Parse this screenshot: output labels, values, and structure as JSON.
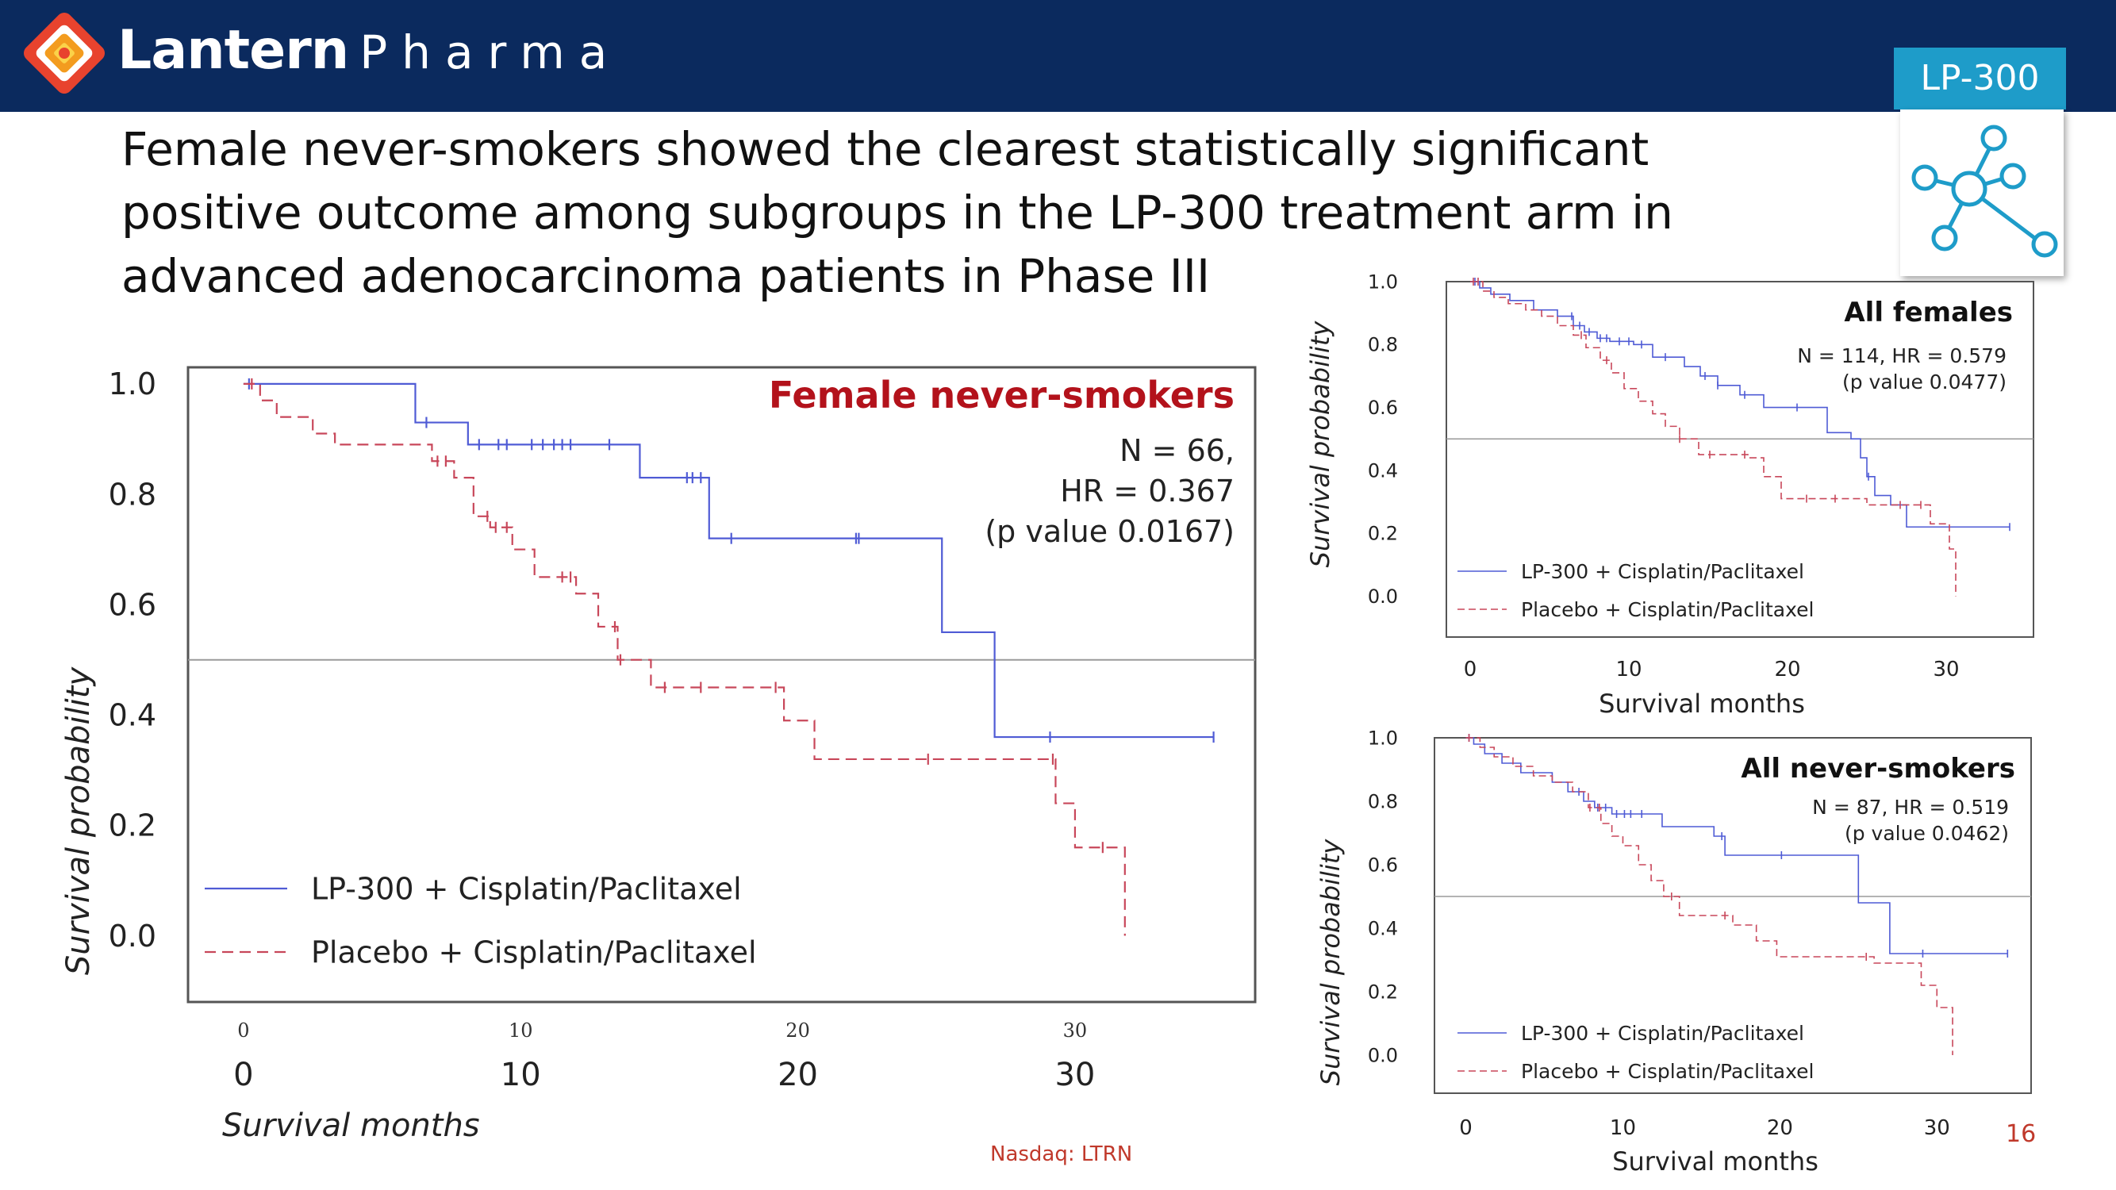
{
  "brand": {
    "name_part1": "Lantern",
    "name_part2": "Pharma"
  },
  "badge": {
    "label": "LP-300"
  },
  "headline": "Female never-smokers showed the clearest statistically significant positive outcome among subgroups in the LP-300 treatment arm in advanced adenocarcinoma patients in Phase III",
  "footer": {
    "ticker": "Nasdaq: LTRN",
    "page_number": "16"
  },
  "colors": {
    "navy": "#0b2a5e",
    "accent": "#1e9cc9",
    "lp300_line": "#4f5bd5",
    "placebo_line": "#c8475a",
    "title_red": "#b3121b"
  },
  "chart_data": [
    {
      "type": "line",
      "subtype": "kaplan-meier",
      "title": "Female never-smokers",
      "stats": [
        "N = 66,",
        "HR = 0.367",
        "(p value 0.0167)"
      ],
      "xlabel": "Survival months",
      "ylabel": "Survival probability",
      "xlim": [
        -2,
        36.5
      ],
      "ylim": [
        -0.12,
        1.03
      ],
      "x_ticks": [
        0,
        10,
        20,
        30
      ],
      "x_ticks_small": [
        0,
        10,
        20,
        30
      ],
      "y_ticks": [
        "1.0",
        "0.8",
        "0.6",
        "0.4",
        "0.2",
        "0.0"
      ],
      "reference_y": 0.5,
      "legend_position": "bottom-left",
      "series": [
        {
          "name": "LP-300 + Cisplatin/Paclitaxel",
          "style": "solid",
          "x": [
            0,
            6.2,
            8.1,
            14.3,
            16.8,
            25.2,
            27.1,
            35.0
          ],
          "y": [
            1.0,
            0.93,
            0.89,
            0.83,
            0.72,
            0.55,
            0.36,
            0.36
          ],
          "censor_x": [
            0.2,
            6.6,
            8.5,
            9.2,
            9.5,
            10.4,
            10.8,
            11.2,
            11.5,
            11.8,
            13.2,
            16.0,
            16.2,
            16.5,
            17.6,
            22.1,
            22.2,
            29.1,
            35.0
          ]
        },
        {
          "name": "Placebo + Cisplatin/Paclitaxel",
          "style": "dashed",
          "x": [
            0,
            0.6,
            1.2,
            2.5,
            3.3,
            6.8,
            7.6,
            8.3,
            8.9,
            9.7,
            10.5,
            12.0,
            12.8,
            13.5,
            14.7,
            19.5,
            20.6,
            29.3,
            30.0,
            31.8,
            31.8
          ],
          "y": [
            1.0,
            0.97,
            0.94,
            0.91,
            0.89,
            0.86,
            0.83,
            0.76,
            0.74,
            0.7,
            0.65,
            0.62,
            0.56,
            0.5,
            0.45,
            0.39,
            0.32,
            0.24,
            0.16,
            0.16,
            0.0
          ],
          "censor_x": [
            0.3,
            7.0,
            7.3,
            8.8,
            9.1,
            9.5,
            11.5,
            11.8,
            13.4,
            13.6,
            15.2,
            16.5,
            19.2,
            24.7,
            29.2,
            31.0
          ]
        }
      ]
    },
    {
      "type": "line",
      "subtype": "kaplan-meier",
      "title": "All females",
      "stats": [
        "N = 114, HR = 0.579",
        "(p value 0.0477)"
      ],
      "xlabel": "Survival months",
      "ylabel": "Survival probability",
      "xlim": [
        -1.5,
        35.5
      ],
      "ylim": [
        -0.13,
        1.0
      ],
      "x_ticks": [
        0,
        10,
        20,
        30
      ],
      "y_ticks": [
        "1.0",
        "0.8",
        "0.6",
        "0.4",
        "0.2",
        "0.0"
      ],
      "reference_y": 0.5,
      "legend_position": "bottom-left",
      "series": [
        {
          "name": "LP-300 + Cisplatin/Paclitaxel",
          "style": "solid",
          "x": [
            0,
            0.6,
            1.3,
            2.5,
            4.0,
            5.5,
            6.5,
            7.2,
            8.0,
            8.8,
            10.3,
            11.5,
            13.5,
            14.5,
            15.6,
            17.0,
            18.5,
            22.5,
            24.0,
            24.6,
            25.0,
            25.5,
            26.5,
            27.5,
            34.0
          ],
          "y": [
            1.0,
            0.98,
            0.96,
            0.94,
            0.91,
            0.89,
            0.86,
            0.84,
            0.82,
            0.81,
            0.8,
            0.76,
            0.73,
            0.7,
            0.67,
            0.64,
            0.6,
            0.52,
            0.5,
            0.44,
            0.38,
            0.32,
            0.29,
            0.22,
            0.22
          ],
          "censor_x": [
            0.3,
            6.4,
            6.9,
            7.5,
            8.2,
            8.6,
            9.4,
            10.0,
            10.8,
            12.3,
            14.8,
            15.6,
            17.3,
            20.6,
            25.1,
            34.0
          ]
        },
        {
          "name": "Placebo + Cisplatin/Paclitaxel",
          "style": "dashed",
          "x": [
            0,
            0.8,
            1.5,
            2.4,
            3.5,
            4.5,
            5.5,
            6.5,
            7.3,
            8.2,
            8.9,
            9.7,
            10.6,
            11.5,
            12.3,
            13.2,
            14.4,
            17.5,
            18.5,
            19.6,
            23.5,
            25.0,
            27.0,
            29.0,
            30.2,
            30.6,
            30.6
          ],
          "y": [
            1.0,
            0.97,
            0.95,
            0.93,
            0.91,
            0.89,
            0.86,
            0.83,
            0.79,
            0.75,
            0.71,
            0.66,
            0.62,
            0.58,
            0.54,
            0.5,
            0.45,
            0.44,
            0.38,
            0.31,
            0.31,
            0.29,
            0.29,
            0.23,
            0.15,
            0.15,
            0.0
          ],
          "censor_x": [
            0.2,
            0.5,
            7.0,
            8.6,
            13.2,
            15.1,
            17.3,
            21.2,
            23.0,
            27.1,
            28.4
          ]
        }
      ]
    },
    {
      "type": "line",
      "subtype": "kaplan-meier",
      "title": "All never-smokers",
      "stats": [
        "N = 87, HR = 0.519",
        "(p value 0.0462)"
      ],
      "xlabel": "Survival months",
      "ylabel": "Survival probability",
      "xlim": [
        -2,
        36
      ],
      "ylim": [
        -0.12,
        1.0
      ],
      "x_ticks": [
        0,
        10,
        20,
        30
      ],
      "y_ticks": [
        "1.0",
        "0.8",
        "0.6",
        "0.4",
        "0.2",
        "0.0"
      ],
      "reference_y": 0.5,
      "legend_position": "bottom-left",
      "series": [
        {
          "name": "LP-300 + Cisplatin/Paclitaxel",
          "style": "solid",
          "x": [
            0,
            0.5,
            1.2,
            2.3,
            3.5,
            5.5,
            6.5,
            7.5,
            8.2,
            9.3,
            12.5,
            15.8,
            16.5,
            25.0,
            27.0,
            34.5
          ],
          "y": [
            1.0,
            0.98,
            0.95,
            0.92,
            0.89,
            0.86,
            0.83,
            0.8,
            0.78,
            0.76,
            0.72,
            0.69,
            0.63,
            0.48,
            0.32,
            0.32
          ],
          "censor_x": [
            0.2,
            7.2,
            8.4,
            8.9,
            9.6,
            10.1,
            10.5,
            11.2,
            16.3,
            20.1,
            29.1,
            34.5
          ]
        },
        {
          "name": "Placebo + Cisplatin/Paclitaxel",
          "style": "dashed",
          "x": [
            0,
            0.9,
            1.8,
            3.0,
            4.3,
            5.5,
            6.8,
            7.8,
            8.6,
            9.3,
            10.0,
            11.0,
            11.8,
            12.6,
            13.6,
            17.0,
            18.5,
            19.8,
            26.0,
            29.0,
            30.0,
            31.0,
            31.0
          ],
          "y": [
            1.0,
            0.97,
            0.94,
            0.91,
            0.88,
            0.86,
            0.83,
            0.78,
            0.73,
            0.69,
            0.66,
            0.6,
            0.55,
            0.5,
            0.44,
            0.41,
            0.36,
            0.31,
            0.29,
            0.22,
            0.15,
            0.15,
            0.0
          ],
          "censor_x": [
            0.2,
            7.9,
            8.5,
            13.1,
            16.5,
            25.5
          ]
        }
      ]
    }
  ]
}
